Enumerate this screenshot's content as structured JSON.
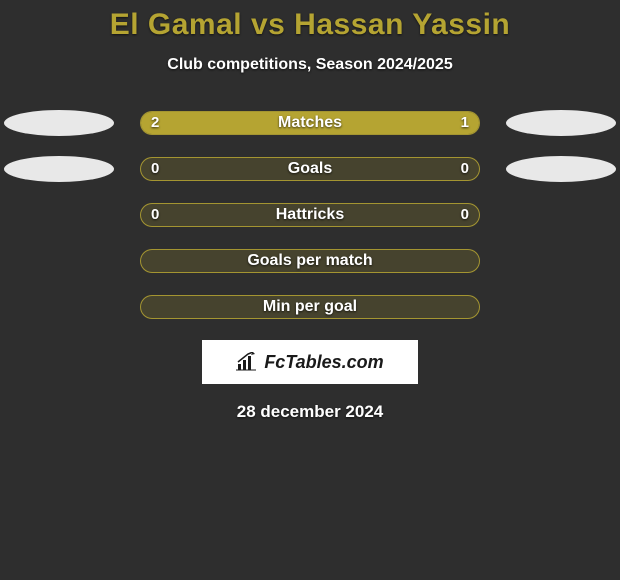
{
  "title": "El Gamal vs Hassan Yassin",
  "subtitle": "Club competitions, Season 2024/2025",
  "date": "28 december 2024",
  "logo_text": "FcTables.com",
  "colors": {
    "background": "#2e2e2e",
    "accent": "#b5a432",
    "ellipse": "#e8e8e8",
    "text": "#ffffff",
    "logo_bg": "#ffffff",
    "logo_text": "#1a1a1a"
  },
  "rows": [
    {
      "label": "Matches",
      "left_val": "2",
      "right_val": "1",
      "left_pct": 66.7,
      "right_pct": 33.3,
      "has_ellipses": true
    },
    {
      "label": "Goals",
      "left_val": "0",
      "right_val": "0",
      "left_pct": 0,
      "right_pct": 0,
      "has_ellipses": true
    },
    {
      "label": "Hattricks",
      "left_val": "0",
      "right_val": "0",
      "left_pct": 0,
      "right_pct": 0,
      "has_ellipses": false
    },
    {
      "label": "Goals per match",
      "left_val": "",
      "right_val": "",
      "left_pct": 0,
      "right_pct": 0,
      "has_ellipses": false
    },
    {
      "label": "Min per goal",
      "left_val": "",
      "right_val": "",
      "left_pct": 0,
      "right_pct": 0,
      "has_ellipses": false
    }
  ],
  "styling": {
    "title_fontsize": 30,
    "subtitle_fontsize": 16,
    "row_label_fontsize": 16,
    "bar_track_width": 340,
    "bar_track_height": 24,
    "bar_border_radius": 12,
    "ellipse_width": 110,
    "ellipse_height": 26,
    "row_gap": 20
  }
}
